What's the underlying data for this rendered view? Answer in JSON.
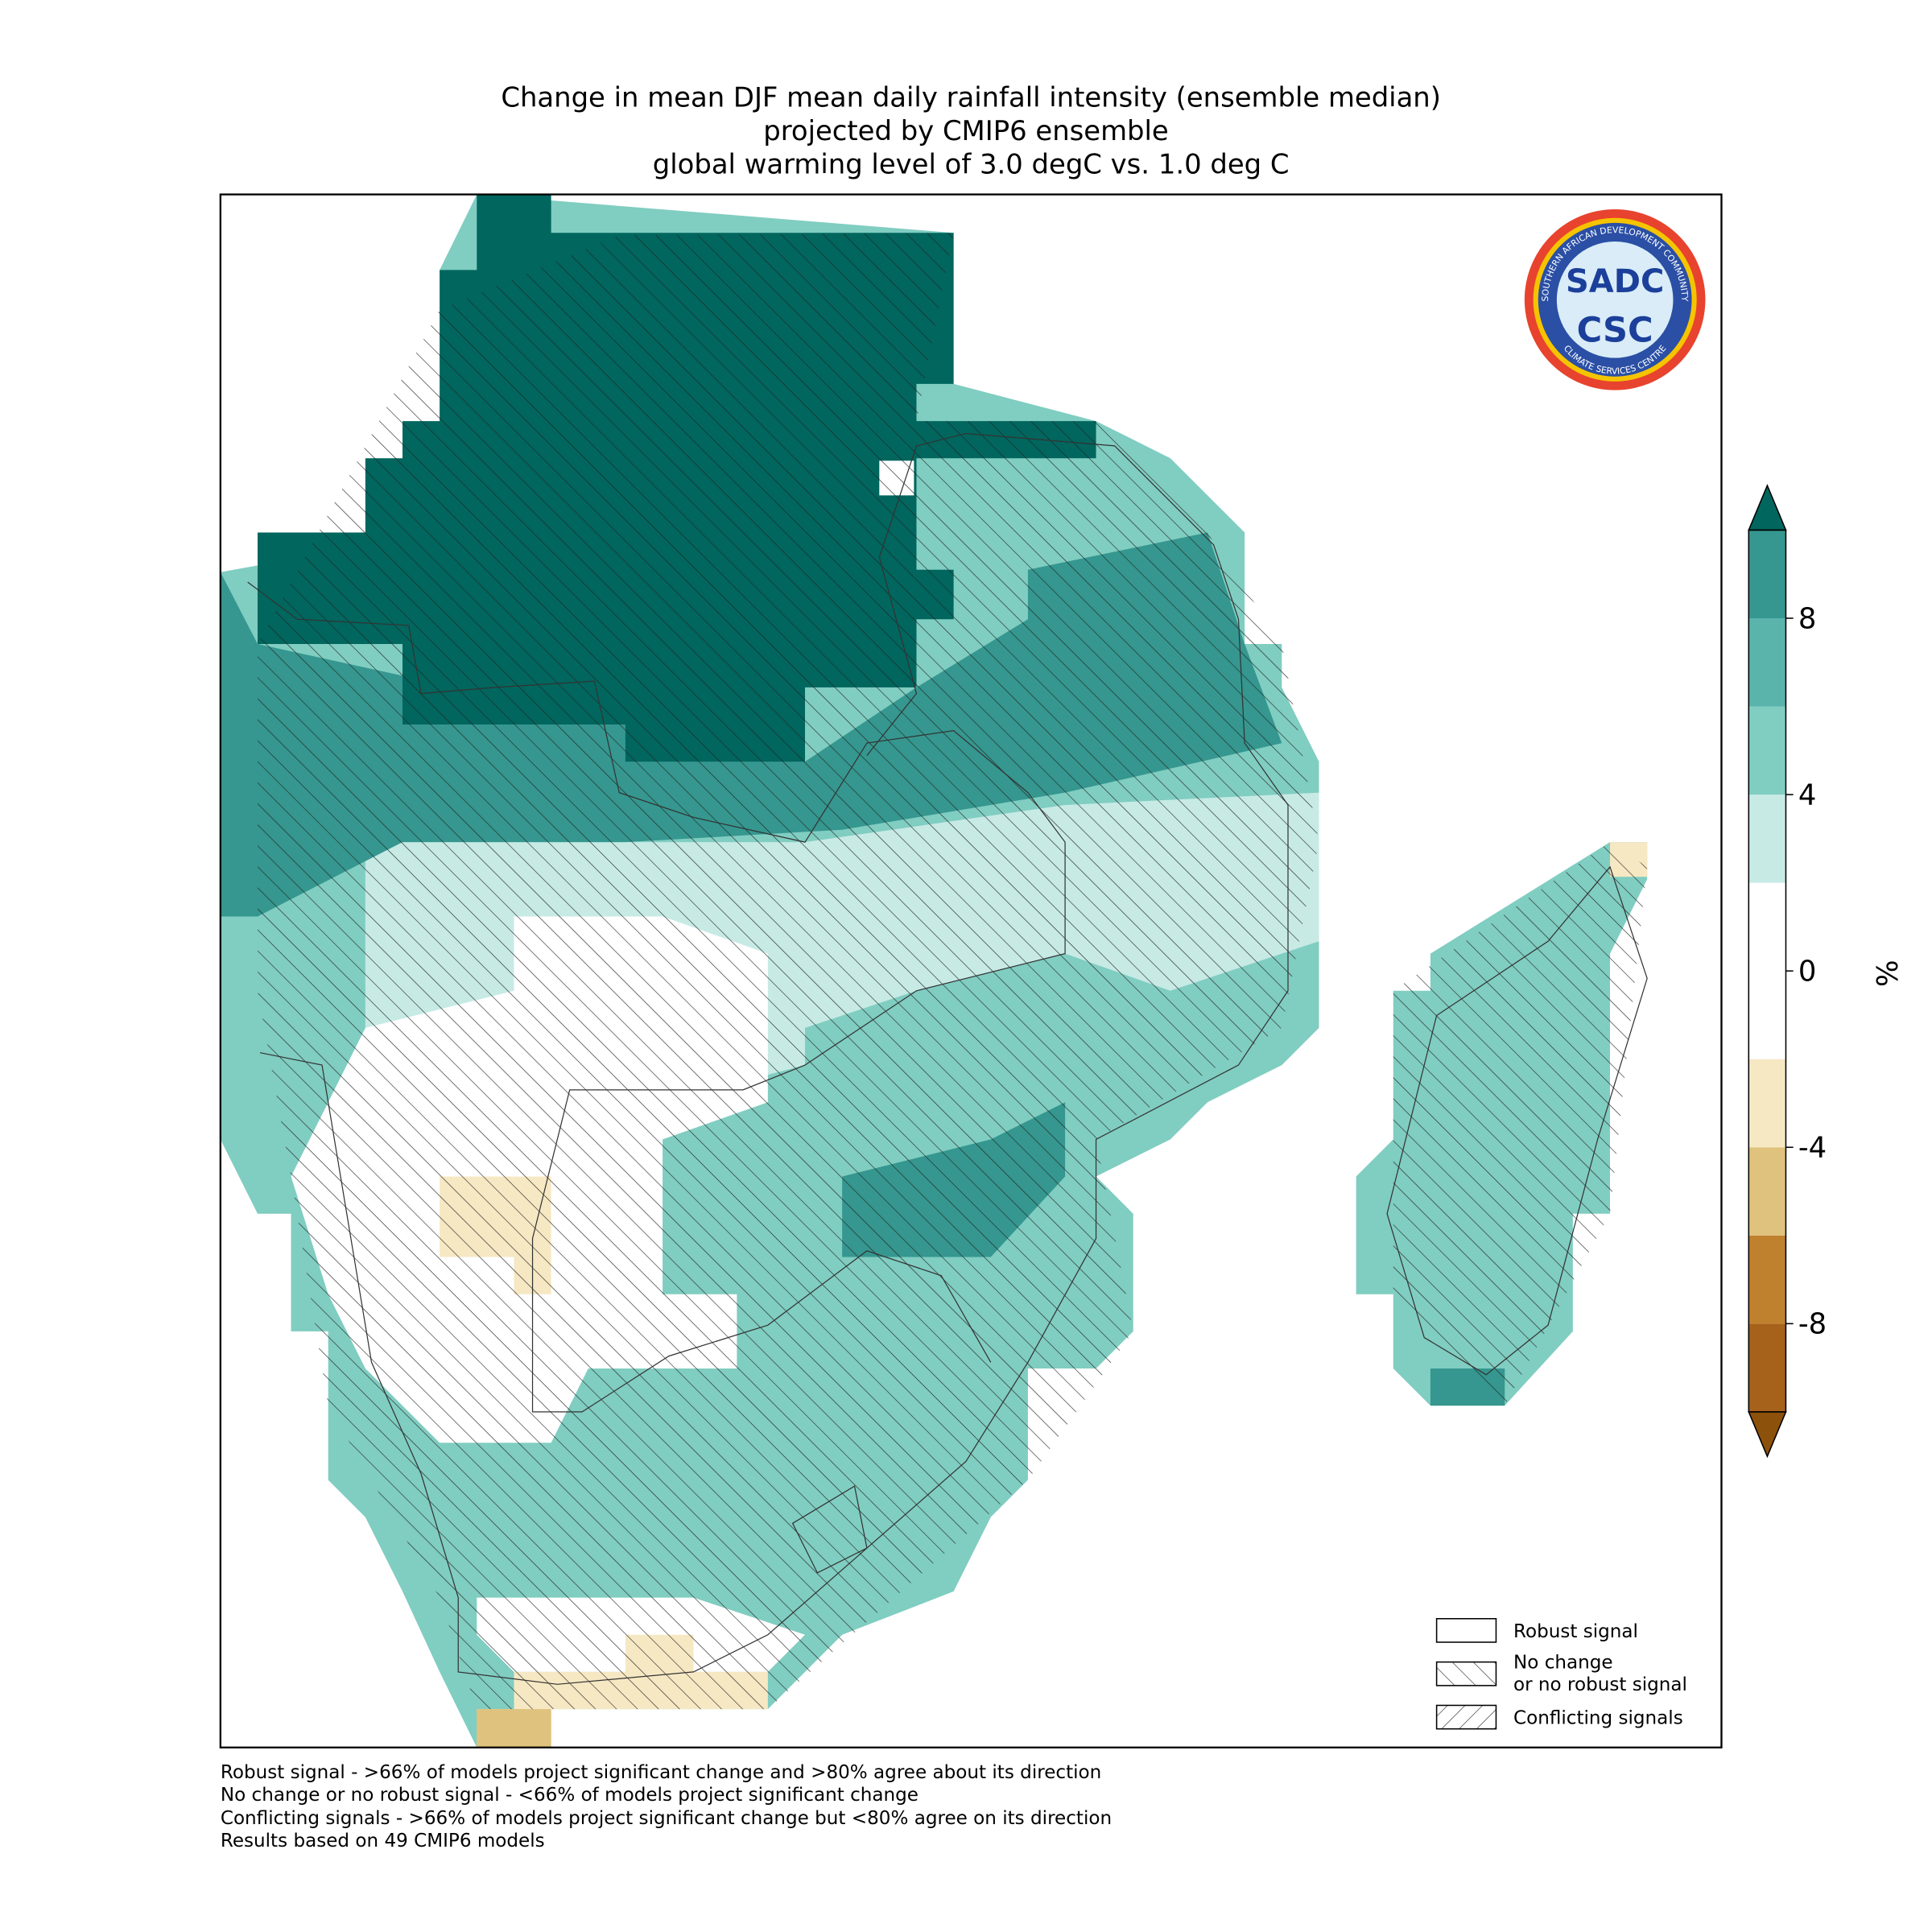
{
  "title": [
    "Change in mean DJF mean daily rainfall intensity (ensemble median)",
    "projected by CMIP6 ensemble",
    "global warming level of 3.0 degC vs. 1.0 deg C"
  ],
  "colorbar": {
    "label": "%",
    "lim": [
      -10,
      10
    ],
    "ticks": [
      -8,
      -4,
      0,
      4,
      8
    ],
    "colors": [
      "#a6611a",
      "#bf812d",
      "#dfc27d",
      "#f6e8c3",
      "#ffffff",
      "#ffffff",
      "#c7eae5",
      "#80cdc1",
      "#5ab4ac",
      "#35978f"
    ],
    "under": "#8c510a",
    "over": "#01665e"
  },
  "legend": [
    "Robust signal",
    "No change\nor no robust signal",
    "Conflicting signals"
  ],
  "footnotes": [
    "Robust signal - >66% of models project significant change and >80% agree about its direction",
    "No change or no robust signal - <66% of models project significant change",
    "Conflicting signals - >66% of models project significant change but <80% agree on its direction",
    "Results based on 49 CMIP6 models"
  ],
  "logo": {
    "top": "SADC",
    "bottom": "CSC",
    "ring_top": "SOUTHERN AFRICAN DEVELOPMENT COMMUNITY",
    "ring_bottom": "CLIMATE SERVICES CENTRE"
  }
}
